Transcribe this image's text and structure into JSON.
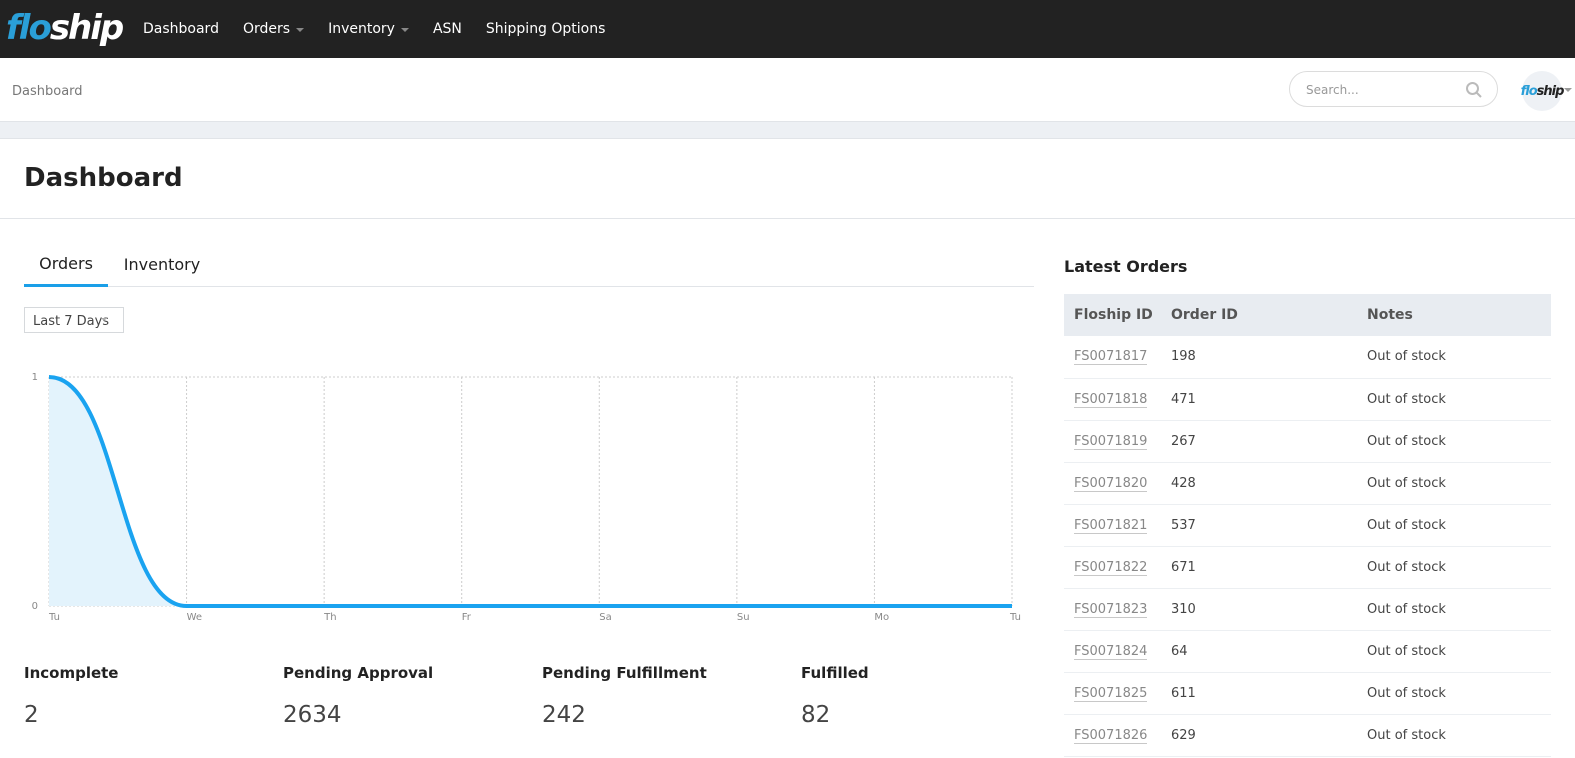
{
  "nav": {
    "logo_flo": "flo",
    "logo_ship": "ship",
    "items": [
      {
        "label": "Dashboard"
      },
      {
        "label": "Orders"
      },
      {
        "label": "Inventory"
      },
      {
        "label": "ASN"
      },
      {
        "label": "Shipping Options"
      }
    ]
  },
  "subheader": {
    "breadcrumb": "Dashboard",
    "search_placeholder": "Search...",
    "avatar_flo": "flo",
    "avatar_ship": "ship"
  },
  "page_title": "Dashboard",
  "tabs": [
    {
      "label": "Orders",
      "active": true
    },
    {
      "label": "Inventory",
      "active": false
    }
  ],
  "range_select": "Last 7 Days",
  "chart_data": {
    "type": "area",
    "categories": [
      "Tu",
      "We",
      "Th",
      "Fr",
      "Sa",
      "Su",
      "Mo",
      "Tu"
    ],
    "series": [
      {
        "values": [
          1,
          0,
          0,
          0,
          0,
          0,
          0,
          0
        ]
      }
    ],
    "ylim": [
      0,
      1
    ],
    "yticks": [
      "0",
      "1"
    ],
    "grid": true,
    "color": "#1aa3f0"
  },
  "stats": [
    {
      "label": "Incomplete",
      "value": "2"
    },
    {
      "label": "Pending Approval",
      "value": "2634"
    },
    {
      "label": "Pending Fulfillment",
      "value": "242"
    },
    {
      "label": "Fulfilled",
      "value": "82"
    }
  ],
  "latest_orders": {
    "title": "Latest Orders",
    "columns": [
      "Floship ID",
      "Order ID",
      "Notes"
    ],
    "rows": [
      [
        "FS0071817",
        "198",
        "Out of stock"
      ],
      [
        "FS0071818",
        "471",
        "Out of stock"
      ],
      [
        "FS0071819",
        "267",
        "Out of stock"
      ],
      [
        "FS0071820",
        "428",
        "Out of stock"
      ],
      [
        "FS0071821",
        "537",
        "Out of stock"
      ],
      [
        "FS0071822",
        "671",
        "Out of stock"
      ],
      [
        "FS0071823",
        "310",
        "Out of stock"
      ],
      [
        "FS0071824",
        "64",
        "Out of stock"
      ],
      [
        "FS0071825",
        "611",
        "Out of stock"
      ],
      [
        "FS0071826",
        "629",
        "Out of stock"
      ]
    ]
  }
}
